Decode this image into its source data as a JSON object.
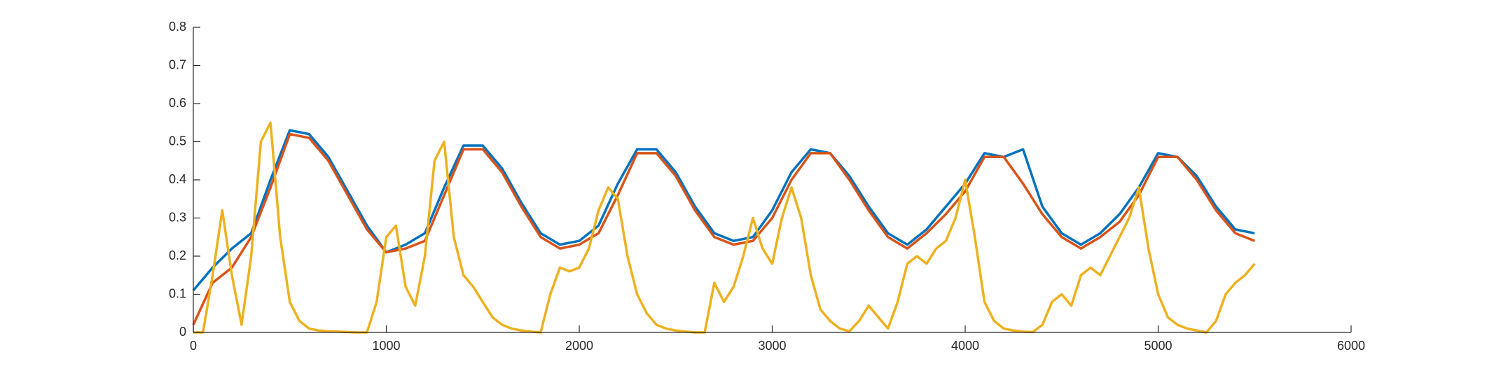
{
  "chart_data": {
    "type": "line",
    "xlim": [
      0,
      6000
    ],
    "xticks": [
      0,
      1000,
      2000,
      3000,
      4000,
      5000,
      6000
    ],
    "ylim": [
      0,
      0.8
    ],
    "yticks": [
      0,
      0.1,
      0.2,
      0.3,
      0.4,
      0.5,
      0.6,
      0.7,
      0.8
    ],
    "grid": false,
    "series": [
      {
        "color": "#0072bd",
        "x": [
          0,
          100,
          200,
          300,
          400,
          500,
          600,
          700,
          800,
          900,
          1000,
          1100,
          1200,
          1300,
          1400,
          1500,
          1600,
          1700,
          1800,
          1900,
          2000,
          2100,
          2200,
          2300,
          2400,
          2500,
          2600,
          2700,
          2800,
          2900,
          3000,
          3100,
          3200,
          3300,
          3400,
          3500,
          3600,
          3700,
          3800,
          3900,
          4000,
          4100,
          4200,
          4300,
          4400,
          4500,
          4600,
          4700,
          4800,
          4900,
          5000,
          5100,
          5200,
          5300,
          5400,
          5500
        ],
        "values": [
          0.11,
          0.17,
          0.22,
          0.26,
          0.4,
          0.53,
          0.52,
          0.46,
          0.37,
          0.28,
          0.21,
          0.23,
          0.26,
          0.38,
          0.49,
          0.49,
          0.43,
          0.34,
          0.26,
          0.23,
          0.24,
          0.28,
          0.39,
          0.48,
          0.48,
          0.42,
          0.33,
          0.26,
          0.24,
          0.25,
          0.32,
          0.42,
          0.48,
          0.47,
          0.41,
          0.33,
          0.26,
          0.23,
          0.27,
          0.33,
          0.39,
          0.47,
          0.46,
          0.48,
          0.33,
          0.26,
          0.23,
          0.26,
          0.31,
          0.38,
          0.47,
          0.46,
          0.41,
          0.33,
          0.27,
          0.26
        ]
      },
      {
        "color": "#d95319",
        "x": [
          0,
          100,
          200,
          300,
          400,
          500,
          600,
          700,
          800,
          900,
          1000,
          1100,
          1200,
          1300,
          1400,
          1500,
          1600,
          1700,
          1800,
          1900,
          2000,
          2100,
          2200,
          2300,
          2400,
          2500,
          2600,
          2700,
          2800,
          2900,
          3000,
          3100,
          3200,
          3300,
          3400,
          3500,
          3600,
          3700,
          3800,
          3900,
          4000,
          4100,
          4200,
          4300,
          4400,
          4500,
          4600,
          4700,
          4800,
          4900,
          5000,
          5100,
          5200,
          5300,
          5400,
          5500
        ],
        "values": [
          0.02,
          0.13,
          0.17,
          0.25,
          0.38,
          0.52,
          0.51,
          0.45,
          0.36,
          0.27,
          0.21,
          0.22,
          0.24,
          0.36,
          0.48,
          0.48,
          0.42,
          0.33,
          0.25,
          0.22,
          0.23,
          0.26,
          0.36,
          0.47,
          0.47,
          0.41,
          0.32,
          0.25,
          0.23,
          0.24,
          0.3,
          0.4,
          0.47,
          0.47,
          0.4,
          0.32,
          0.25,
          0.22,
          0.26,
          0.31,
          0.37,
          0.46,
          0.46,
          0.39,
          0.31,
          0.25,
          0.22,
          0.25,
          0.29,
          0.36,
          0.46,
          0.46,
          0.4,
          0.32,
          0.26,
          0.24
        ]
      },
      {
        "color": "#edb120",
        "x": [
          0,
          50,
          100,
          150,
          200,
          250,
          300,
          350,
          400,
          450,
          500,
          550,
          600,
          650,
          700,
          750,
          800,
          850,
          900,
          950,
          1000,
          1050,
          1100,
          1150,
          1200,
          1250,
          1300,
          1350,
          1400,
          1450,
          1500,
          1550,
          1600,
          1650,
          1700,
          1750,
          1800,
          1850,
          1900,
          1950,
          2000,
          2050,
          2100,
          2150,
          2200,
          2250,
          2300,
          2350,
          2400,
          2450,
          2500,
          2550,
          2600,
          2650,
          2700,
          2750,
          2800,
          2850,
          2900,
          2950,
          3000,
          3050,
          3100,
          3150,
          3200,
          3250,
          3300,
          3350,
          3400,
          3450,
          3500,
          3550,
          3600,
          3650,
          3700,
          3750,
          3800,
          3850,
          3900,
          3950,
          4000,
          4050,
          4100,
          4150,
          4200,
          4250,
          4300,
          4350,
          4400,
          4450,
          4500,
          4550,
          4600,
          4650,
          4700,
          4750,
          4800,
          4850,
          4900,
          4950,
          5000,
          5050,
          5100,
          5150,
          5200,
          5250,
          5300,
          5350,
          5400,
          5450,
          5500
        ],
        "values": [
          0.0,
          0.0,
          0.15,
          0.32,
          0.15,
          0.02,
          0.2,
          0.5,
          0.55,
          0.25,
          0.08,
          0.03,
          0.01,
          0.005,
          0.003,
          0.002,
          0.001,
          0.0,
          0.0,
          0.08,
          0.25,
          0.28,
          0.12,
          0.07,
          0.2,
          0.45,
          0.5,
          0.25,
          0.15,
          0.12,
          0.08,
          0.04,
          0.02,
          0.01,
          0.005,
          0.002,
          0.0,
          0.1,
          0.17,
          0.16,
          0.17,
          0.22,
          0.32,
          0.38,
          0.35,
          0.2,
          0.1,
          0.05,
          0.02,
          0.01,
          0.005,
          0.002,
          0.0,
          0.0,
          0.13,
          0.08,
          0.12,
          0.2,
          0.3,
          0.22,
          0.18,
          0.3,
          0.38,
          0.3,
          0.15,
          0.06,
          0.03,
          0.01,
          0.003,
          0.03,
          0.07,
          0.04,
          0.01,
          0.08,
          0.18,
          0.2,
          0.18,
          0.22,
          0.24,
          0.3,
          0.4,
          0.25,
          0.08,
          0.03,
          0.01,
          0.005,
          0.002,
          0.001,
          0.02,
          0.08,
          0.1,
          0.07,
          0.15,
          0.17,
          0.15,
          0.2,
          0.25,
          0.3,
          0.38,
          0.22,
          0.1,
          0.04,
          0.02,
          0.01,
          0.005,
          0.0,
          0.03,
          0.1,
          0.13,
          0.15,
          0.18
        ]
      }
    ]
  }
}
